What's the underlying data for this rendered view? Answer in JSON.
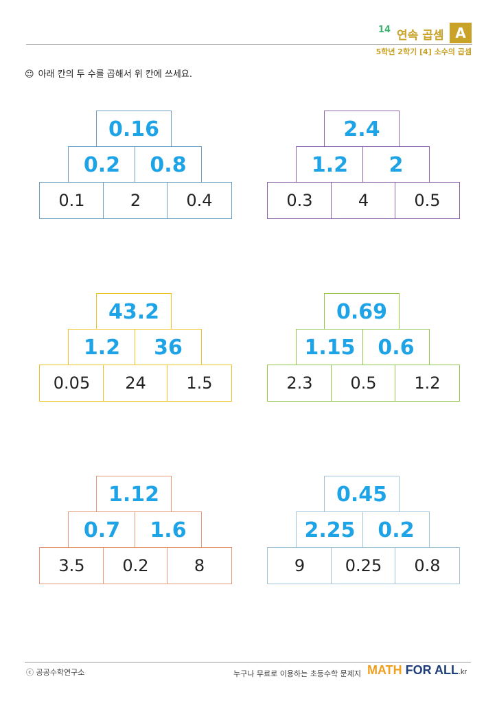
{
  "header": {
    "number": "14",
    "title": "연속 곱셈",
    "badge": "A",
    "subtitle": "5학년 2학기 [4] 소수의 곱셈"
  },
  "instruction": {
    "icon": "smiley-icon",
    "text": "아래 칸의 두 수를 곱해서 위 칸에 쓰세요."
  },
  "pyramids": [
    {
      "color": "#6a9ec2",
      "top": "0.16",
      "middle": [
        "0.2",
        "0.8"
      ],
      "bottom": [
        "0.1",
        "2",
        "0.4"
      ]
    },
    {
      "color": "#8e63a8",
      "top": "2.4",
      "middle": [
        "1.2",
        "2"
      ],
      "bottom": [
        "0.3",
        "4",
        "0.5"
      ]
    },
    {
      "color": "#eec21e",
      "top": "43.2",
      "middle": [
        "1.2",
        "36"
      ],
      "bottom": [
        "0.05",
        "24",
        "1.5"
      ]
    },
    {
      "color": "#95c64e",
      "top": "0.69",
      "middle": [
        "1.15",
        "0.6"
      ],
      "bottom": [
        "2.3",
        "0.5",
        "1.2"
      ]
    },
    {
      "color": "#e79876",
      "top": "1.12",
      "middle": [
        "0.7",
        "1.6"
      ],
      "bottom": [
        "3.5",
        "0.2",
        "8"
      ]
    },
    {
      "color": "#a2c4da",
      "top": "0.45",
      "middle": [
        "2.25",
        "0.2"
      ],
      "bottom": [
        "9",
        "0.25",
        "0.8"
      ]
    }
  ],
  "footer": {
    "copyright": "ⓒ 공공수학연구소",
    "tagline": "누구나 무료로 이용하는 초등수학 문제지",
    "logo_math": "MATH",
    "logo_forall": "FOR ALL",
    "logo_kr": ".kr"
  }
}
